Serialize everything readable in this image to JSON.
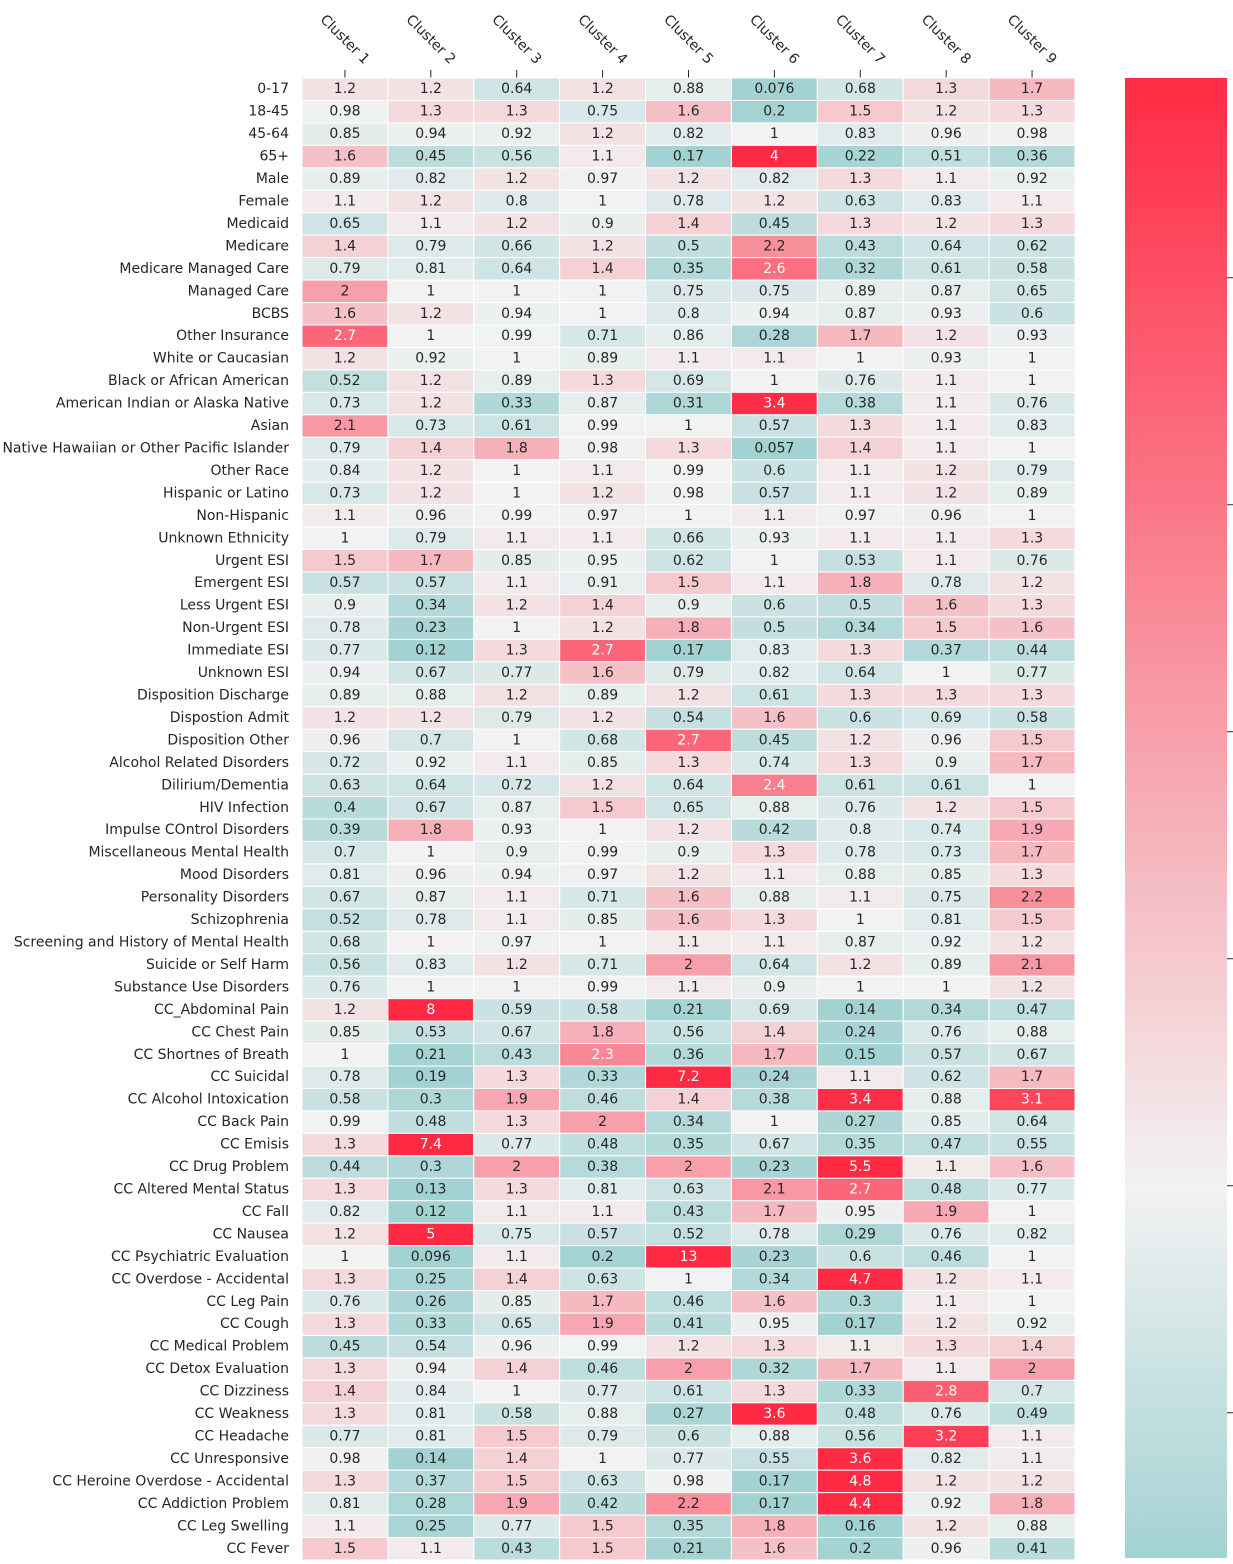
{
  "chart_data": {
    "type": "heatmap",
    "columns": [
      "Cluster 1",
      "Cluster 2",
      "Cluster 3",
      "Cluster 4",
      "Cluster 5",
      "Cluster 6",
      "Cluster 7",
      "Cluster 8",
      "Cluster 9"
    ],
    "rows": [
      "0-17",
      "18-45",
      "45-64",
      "65+",
      "Male",
      "Female",
      "Medicaid",
      "Medicare",
      "Medicare Managed Care",
      "Managed Care",
      "BCBS",
      "Other Insurance",
      "White or Caucasian",
      "Black or African American",
      "American Indian or Alaska Native",
      "Asian",
      "Native Hawaiian or Other Pacific Islander",
      "Other Race",
      "Hispanic or Latino",
      "Non-Hispanic",
      "Unknown Ethnicity",
      "Urgent ESI",
      "Emergent ESI",
      "Less Urgent ESI",
      "Non-Urgent ESI",
      "Immediate ESI",
      "Unknown ESI",
      "Disposition Discharge",
      "Dispostion Admit",
      "Disposition Other",
      "Alcohol Related Disorders",
      "Dilirium/Dementia",
      "HIV Infection",
      "Impulse COntrol Disorders",
      "Miscellaneous Mental Health",
      "Mood Disorders",
      "Personality Disorders",
      "Schizophrenia",
      "Screening and History of Mental Health",
      "Suicide or Self Harm",
      "Substance Use Disorders",
      "CC_Abdominal Pain",
      "CC Chest Pain",
      "CC Shortnes of Breath",
      "CC Suicidal",
      "CC Alcohol Intoxication",
      "CC Back Pain",
      "CC Emisis",
      "CC Drug Problem",
      "CC Altered Mental Status",
      "CC Fall",
      "CC Nausea",
      "CC Psychiatric Evaluation",
      "CC Overdose - Accidental",
      "CC Leg Pain",
      "CC Cough",
      "CC Medical Problem",
      "CC Detox Evaluation",
      "CC Dizziness",
      "CC Weakness",
      "CC Headache",
      "CC Unresponsive",
      "CC Heroine Overdose - Accidental",
      "CC Addiction Problem",
      "CC Leg Swelling",
      "CC Fever"
    ],
    "values": [
      [
        1.2,
        1.2,
        0.64,
        1.2,
        0.88,
        0.076,
        0.68,
        1.3,
        1.7
      ],
      [
        0.98,
        1.3,
        1.3,
        0.75,
        1.6,
        0.2,
        1.5,
        1.2,
        1.3
      ],
      [
        0.85,
        0.94,
        0.92,
        1.2,
        0.82,
        1,
        0.83,
        0.96,
        0.98
      ],
      [
        1.6,
        0.45,
        0.56,
        1.1,
        0.17,
        4,
        0.22,
        0.51,
        0.36
      ],
      [
        0.89,
        0.82,
        1.2,
        0.97,
        1.2,
        0.82,
        1.3,
        1.1,
        0.92
      ],
      [
        1.1,
        1.2,
        0.8,
        1,
        0.78,
        1.2,
        0.63,
        0.83,
        1.1
      ],
      [
        0.65,
        1.1,
        1.2,
        0.9,
        1.4,
        0.45,
        1.3,
        1.2,
        1.3
      ],
      [
        1.4,
        0.79,
        0.66,
        1.2,
        0.5,
        2.2,
        0.43,
        0.64,
        0.62
      ],
      [
        0.79,
        0.81,
        0.64,
        1.4,
        0.35,
        2.6,
        0.32,
        0.61,
        0.58
      ],
      [
        2,
        1,
        1,
        1,
        0.75,
        0.75,
        0.89,
        0.87,
        0.65
      ],
      [
        1.6,
        1.2,
        0.94,
        1,
        0.8,
        0.94,
        0.87,
        0.93,
        0.6
      ],
      [
        2.7,
        1,
        0.99,
        0.71,
        0.86,
        0.28,
        1.7,
        1.2,
        0.93
      ],
      [
        1.2,
        0.92,
        1,
        0.89,
        1.1,
        1.1,
        1,
        0.93,
        1
      ],
      [
        0.52,
        1.2,
        0.89,
        1.3,
        0.69,
        1,
        0.76,
        1.1,
        1
      ],
      [
        0.73,
        1.2,
        0.33,
        0.87,
        0.31,
        3.4,
        0.38,
        1.1,
        0.76
      ],
      [
        2.1,
        0.73,
        0.61,
        0.99,
        1,
        0.57,
        1.3,
        1.1,
        0.83
      ],
      [
        0.79,
        1.4,
        1.8,
        0.98,
        1.3,
        0.057,
        1.4,
        1.1,
        1
      ],
      [
        0.84,
        1.2,
        1,
        1.1,
        0.99,
        0.6,
        1.1,
        1.2,
        0.79
      ],
      [
        0.73,
        1.2,
        1,
        1.2,
        0.98,
        0.57,
        1.1,
        1.2,
        0.89
      ],
      [
        1.1,
        0.96,
        0.99,
        0.97,
        1,
        1.1,
        0.97,
        0.96,
        1
      ],
      [
        1,
        0.79,
        1.1,
        1.1,
        0.66,
        0.93,
        1.1,
        1.1,
        1.3
      ],
      [
        1.5,
        1.7,
        0.85,
        0.95,
        0.62,
        1,
        0.53,
        1.1,
        0.76
      ],
      [
        0.57,
        0.57,
        1.1,
        0.91,
        1.5,
        1.1,
        1.8,
        0.78,
        1.2
      ],
      [
        0.9,
        0.34,
        1.2,
        1.4,
        0.9,
        0.6,
        0.5,
        1.6,
        1.3
      ],
      [
        0.78,
        0.23,
        1,
        1.2,
        1.8,
        0.5,
        0.34,
        1.5,
        1.6
      ],
      [
        0.77,
        0.12,
        1.3,
        2.7,
        0.17,
        0.83,
        1.3,
        0.37,
        0.44
      ],
      [
        0.94,
        0.67,
        0.77,
        1.6,
        0.79,
        0.82,
        0.64,
        1,
        0.77
      ],
      [
        0.89,
        0.88,
        1.2,
        0.89,
        1.2,
        0.61,
        1.3,
        1.3,
        1.3
      ],
      [
        1.2,
        1.2,
        0.79,
        1.2,
        0.54,
        1.6,
        0.6,
        0.69,
        0.58
      ],
      [
        0.96,
        0.7,
        1,
        0.68,
        2.7,
        0.45,
        1.2,
        0.96,
        1.5
      ],
      [
        0.72,
        0.92,
        1.1,
        0.85,
        1.3,
        0.74,
        1.3,
        0.9,
        1.7
      ],
      [
        0.63,
        0.64,
        0.72,
        1.2,
        0.64,
        2.4,
        0.61,
        0.61,
        1
      ],
      [
        0.4,
        0.67,
        0.87,
        1.5,
        0.65,
        0.88,
        0.76,
        1.2,
        1.5
      ],
      [
        0.39,
        1.8,
        0.93,
        1,
        1.2,
        0.42,
        0.8,
        0.74,
        1.9
      ],
      [
        0.7,
        1,
        0.9,
        0.99,
        0.9,
        1.3,
        0.78,
        0.73,
        1.7
      ],
      [
        0.81,
        0.96,
        0.94,
        0.97,
        1.2,
        1.1,
        0.88,
        0.85,
        1.3
      ],
      [
        0.67,
        0.87,
        1.1,
        0.71,
        1.6,
        0.88,
        1.1,
        0.75,
        2.2
      ],
      [
        0.52,
        0.78,
        1.1,
        0.85,
        1.6,
        1.3,
        1,
        0.81,
        1.5
      ],
      [
        0.68,
        1,
        0.97,
        1,
        1.1,
        1.1,
        0.87,
        0.92,
        1.2
      ],
      [
        0.56,
        0.83,
        1.2,
        0.71,
        2,
        0.64,
        1.2,
        0.89,
        2.1
      ],
      [
        0.76,
        1,
        1,
        0.99,
        1.1,
        0.9,
        1,
        1,
        1.2
      ],
      [
        1.2,
        8,
        0.59,
        0.58,
        0.21,
        0.69,
        0.14,
        0.34,
        0.47
      ],
      [
        0.85,
        0.53,
        0.67,
        1.8,
        0.56,
        1.4,
        0.24,
        0.76,
        0.88
      ],
      [
        1,
        0.21,
        0.43,
        2.3,
        0.36,
        1.7,
        0.15,
        0.57,
        0.67
      ],
      [
        0.78,
        0.19,
        1.3,
        0.33,
        7.2,
        0.24,
        1.1,
        0.62,
        1.7
      ],
      [
        0.58,
        0.3,
        1.9,
        0.46,
        1.4,
        0.38,
        3.4,
        0.88,
        3.1
      ],
      [
        0.99,
        0.48,
        1.3,
        2,
        0.34,
        1,
        0.27,
        0.85,
        0.64
      ],
      [
        1.3,
        7.4,
        0.77,
        0.48,
        0.35,
        0.67,
        0.35,
        0.47,
        0.55
      ],
      [
        0.44,
        0.3,
        2,
        0.38,
        2,
        0.23,
        5.5,
        1.1,
        1.6
      ],
      [
        1.3,
        0.13,
        1.3,
        0.81,
        0.63,
        2.1,
        2.7,
        0.48,
        0.77
      ],
      [
        0.82,
        0.12,
        1.1,
        1.1,
        0.43,
        1.7,
        0.95,
        1.9,
        1
      ],
      [
        1.2,
        5,
        0.75,
        0.57,
        0.52,
        0.78,
        0.29,
        0.76,
        0.82
      ],
      [
        1,
        0.096,
        1.1,
        0.2,
        13,
        0.23,
        0.6,
        0.46,
        1
      ],
      [
        1.3,
        0.25,
        1.4,
        0.63,
        1,
        0.34,
        4.7,
        1.2,
        1.1
      ],
      [
        0.76,
        0.26,
        0.85,
        1.7,
        0.46,
        1.6,
        0.3,
        1.1,
        1
      ],
      [
        1.3,
        0.33,
        0.65,
        1.9,
        0.41,
        0.95,
        0.17,
        1.2,
        0.92
      ],
      [
        0.45,
        0.54,
        0.96,
        0.99,
        1.2,
        1.3,
        1.1,
        1.3,
        1.4
      ],
      [
        1.3,
        0.94,
        1.4,
        0.46,
        2,
        0.32,
        1.7,
        1.1,
        2
      ],
      [
        1.4,
        0.84,
        1,
        0.77,
        0.61,
        1.3,
        0.33,
        2.8,
        0.7
      ],
      [
        1.3,
        0.81,
        0.58,
        0.88,
        0.27,
        3.6,
        0.48,
        0.76,
        0.49
      ],
      [
        0.77,
        0.81,
        1.5,
        0.79,
        0.6,
        0.88,
        0.56,
        3.2,
        1.1
      ],
      [
        0.98,
        0.14,
        1.4,
        1,
        0.77,
        0.55,
        3.6,
        0.82,
        1.1
      ],
      [
        1.3,
        0.37,
        1.5,
        0.63,
        0.98,
        0.17,
        4.8,
        1.2,
        1.2
      ],
      [
        0.81,
        0.28,
        1.9,
        0.42,
        2.2,
        0.17,
        4.4,
        0.92,
        1.8
      ],
      [
        1.1,
        0.25,
        0.77,
        1.5,
        0.35,
        1.8,
        0.16,
        1.2,
        0.88
      ],
      [
        1.5,
        1.1,
        0.43,
        1.5,
        0.21,
        1.6,
        0.2,
        0.96,
        0.41
      ]
    ],
    "clim": [
      0.18,
      3.44
    ],
    "center": 1,
    "cmap": {
      "low": "#a3d2d3",
      "center": "#f2f2f2",
      "high": "#ff2a44"
    },
    "cticks": [
      0.5,
      {
        "value": 1,
        "label": "1.0"
      },
      1.5,
      {
        "value": 2,
        "label": "2.0"
      },
      2.5,
      {
        "value": 3,
        "label": "3.0"
      }
    ]
  }
}
